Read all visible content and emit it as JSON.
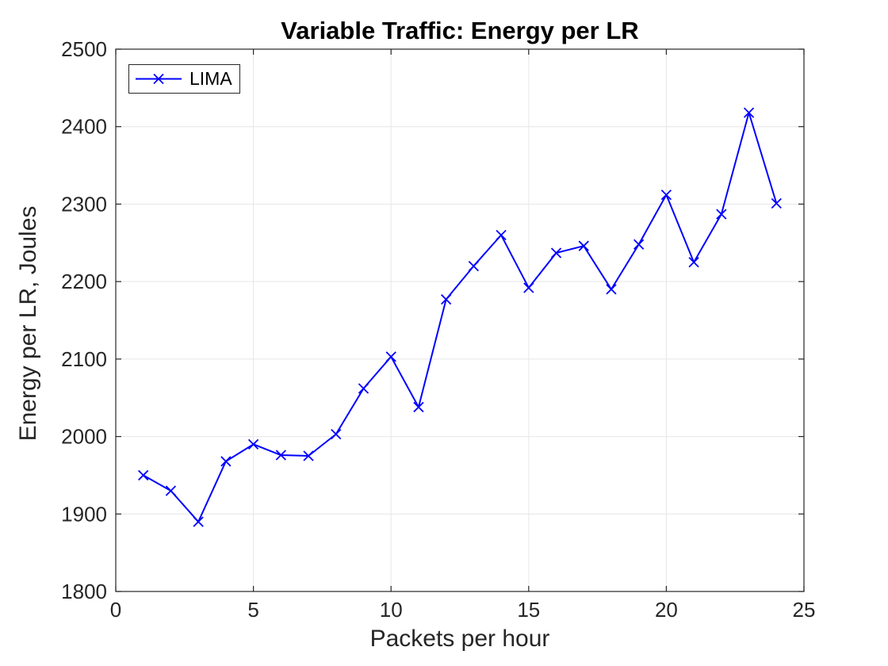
{
  "figure": {
    "background": "#ffffff"
  },
  "chart_data": {
    "type": "line",
    "title": "Variable Traffic: Energy per LR",
    "xlabel": "Packets per hour",
    "ylabel": "Energy per LR, Joules",
    "xlim": [
      0,
      25
    ],
    "ylim": [
      1800,
      2500
    ],
    "xticks": [
      0,
      5,
      10,
      15,
      20,
      25
    ],
    "yticks": [
      1800,
      1900,
      2000,
      2100,
      2200,
      2300,
      2400,
      2500
    ],
    "grid": true,
    "legend": {
      "position": "top-left",
      "entries": [
        {
          "label": "LIMA",
          "color": "#0000ff",
          "marker": "x"
        }
      ]
    },
    "x": [
      1,
      2,
      3,
      4,
      5,
      6,
      7,
      8,
      9,
      10,
      11,
      12,
      13,
      14,
      15,
      16,
      17,
      18,
      19,
      20,
      21,
      22,
      23,
      24
    ],
    "series": [
      {
        "name": "LIMA",
        "color": "#0000ff",
        "marker": "x",
        "values": [
          1950,
          1930,
          1890,
          1968,
          1990,
          1976,
          1975,
          2003,
          2062,
          2103,
          2038,
          2177,
          2220,
          2260,
          2192,
          2237,
          2246,
          2190,
          2248,
          2312,
          2225,
          2287,
          2418,
          2301
        ]
      }
    ]
  },
  "colors": {
    "line": "#0000ff",
    "grid": "#e6e6e6",
    "axis": "#262626",
    "title": "#000000",
    "background": "#ffffff"
  }
}
